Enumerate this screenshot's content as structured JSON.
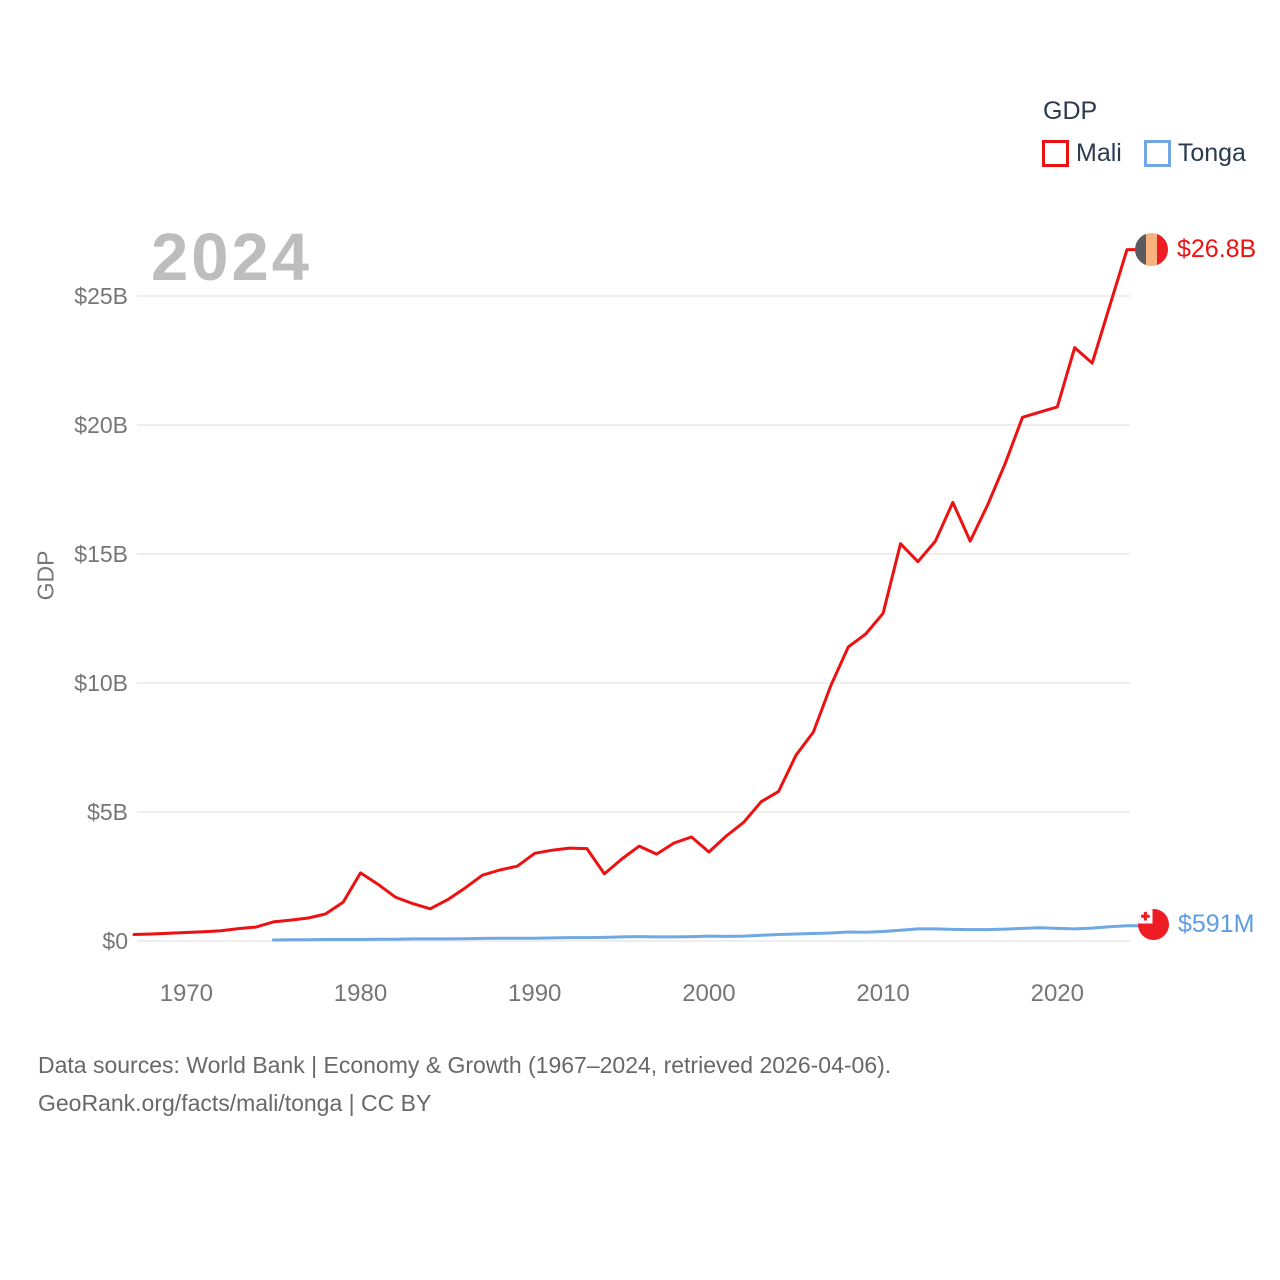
{
  "watermark_year": "2024",
  "legend": {
    "title": "GDP",
    "items": [
      {
        "label": "Mali"
      },
      {
        "label": "Tonga"
      }
    ]
  },
  "chart_data": {
    "type": "line",
    "title": "GDP",
    "ylabel": "GDP",
    "xlabel": "",
    "grid": "horizontal",
    "legend_position": "top-right",
    "xlim": [
      1967,
      2024
    ],
    "ylim": [
      0,
      25
    ],
    "units": "billion USD",
    "x_ticks": [
      {
        "value": 1970,
        "label": "1970"
      },
      {
        "value": 1980,
        "label": "1980"
      },
      {
        "value": 1990,
        "label": "1990"
      },
      {
        "value": 2000,
        "label": "2000"
      },
      {
        "value": 2010,
        "label": "2010"
      },
      {
        "value": 2020,
        "label": "2020"
      }
    ],
    "y_ticks": [
      {
        "value": 0,
        "label": "$0"
      },
      {
        "value": 5,
        "label": "$5B"
      },
      {
        "value": 10,
        "label": "$10B"
      },
      {
        "value": 15,
        "label": "$15B"
      },
      {
        "value": 20,
        "label": "$20B"
      },
      {
        "value": 25,
        "label": "$25B"
      }
    ],
    "series": [
      {
        "name": "Mali",
        "color": "#ee1111",
        "label_color": "#ee1111",
        "end_label": "$26.8B",
        "start_year": 1967,
        "values": [
          0.25,
          0.27,
          0.3,
          0.33,
          0.36,
          0.4,
          0.48,
          0.54,
          0.74,
          0.81,
          0.89,
          1.05,
          1.5,
          2.64,
          2.2,
          1.7,
          1.45,
          1.25,
          1.6,
          2.05,
          2.55,
          2.75,
          2.9,
          3.4,
          3.52,
          3.6,
          3.58,
          2.6,
          3.18,
          3.68,
          3.37,
          3.8,
          4.03,
          3.45,
          4.07,
          4.6,
          5.4,
          5.8,
          7.2,
          8.1,
          9.9,
          11.4,
          11.9,
          12.7,
          15.4,
          14.7,
          15.5,
          17.0,
          15.5,
          16.9,
          18.5,
          20.3,
          20.5,
          20.7,
          23.0,
          22.4,
          24.6,
          26.8
        ]
      },
      {
        "name": "Tonga",
        "color": "#6fa8e4",
        "label_color": "#5f9de2",
        "end_label": "$591M",
        "start_year": 1975,
        "values": [
          0.04,
          0.05,
          0.05,
          0.06,
          0.06,
          0.06,
          0.07,
          0.07,
          0.08,
          0.08,
          0.08,
          0.09,
          0.1,
          0.11,
          0.11,
          0.11,
          0.12,
          0.13,
          0.13,
          0.14,
          0.16,
          0.17,
          0.16,
          0.16,
          0.17,
          0.19,
          0.18,
          0.19,
          0.22,
          0.25,
          0.27,
          0.29,
          0.31,
          0.35,
          0.34,
          0.37,
          0.42,
          0.47,
          0.47,
          0.45,
          0.44,
          0.44,
          0.46,
          0.49,
          0.51,
          0.49,
          0.47,
          0.5,
          0.55,
          0.591
        ]
      }
    ],
    "flag_colors": {
      "mali_bands": [
        "#5b5b5f",
        "#f9b17e",
        "#ee1c25"
      ],
      "tonga_red": "#ee1c25",
      "tonga_white": "#ffffff"
    },
    "gridline_color": "#e9e9e9",
    "tick_color": "#767676"
  },
  "footer": {
    "line1": "Data sources: World Bank | Economy & Growth (1967–2024, retrieved 2026-04-06).",
    "line2": "GeoRank.org/facts/mali/tonga | CC BY"
  }
}
